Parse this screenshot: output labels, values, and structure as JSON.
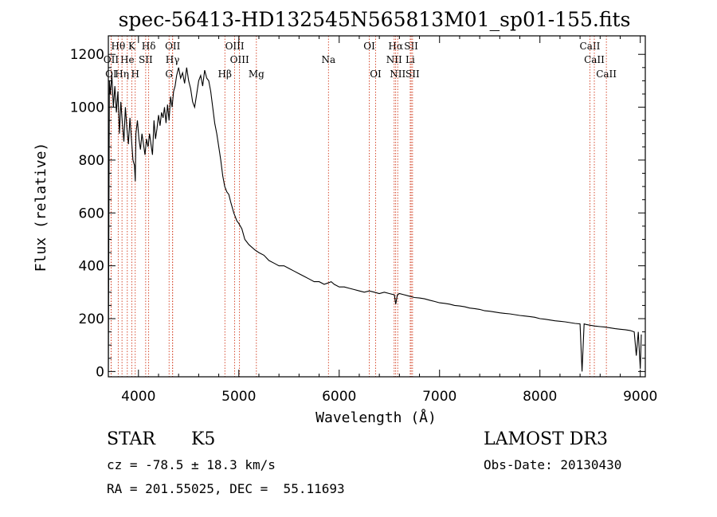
{
  "chart_data": {
    "type": "line",
    "title": "spec-56413-HD132545N565813M01_sp01-155.fits",
    "xlabel": "Wavelength (Å)",
    "ylabel": "Flux (relative)",
    "xlim": [
      3700,
      9050
    ],
    "ylim": [
      -20,
      1270
    ],
    "x_ticks": [
      4000,
      5000,
      6000,
      7000,
      8000,
      9000
    ],
    "y_ticks": [
      0,
      200,
      400,
      600,
      800,
      1000,
      1200
    ],
    "series": [
      {
        "name": "flux",
        "x": [
          3700,
          3710,
          3720,
          3735,
          3750,
          3765,
          3780,
          3795,
          3810,
          3825,
          3840,
          3855,
          3870,
          3885,
          3900,
          3915,
          3930,
          3945,
          3960,
          3968,
          3975,
          3990,
          4005,
          4020,
          4035,
          4050,
          4065,
          4080,
          4095,
          4110,
          4125,
          4140,
          4155,
          4170,
          4185,
          4200,
          4215,
          4230,
          4245,
          4260,
          4275,
          4290,
          4305,
          4320,
          4335,
          4350,
          4365,
          4380,
          4400,
          4420,
          4440,
          4460,
          4480,
          4500,
          4520,
          4540,
          4560,
          4580,
          4600,
          4620,
          4640,
          4660,
          4680,
          4700,
          4720,
          4740,
          4760,
          4780,
          4800,
          4820,
          4840,
          4860,
          4880,
          4900,
          4920,
          4950,
          4980,
          5000,
          5030,
          5060,
          5100,
          5130,
          5160,
          5200,
          5250,
          5300,
          5350,
          5400,
          5450,
          5500,
          5550,
          5600,
          5650,
          5700,
          5750,
          5800,
          5850,
          5890,
          5920,
          5950,
          6000,
          6050,
          6100,
          6150,
          6200,
          6250,
          6300,
          6350,
          6400,
          6450,
          6500,
          6550,
          6563,
          6580,
          6600,
          6650,
          6700,
          6750,
          6800,
          6850,
          6900,
          6950,
          7000,
          7050,
          7100,
          7150,
          7200,
          7250,
          7300,
          7350,
          7400,
          7450,
          7500,
          7550,
          7600,
          7650,
          7700,
          7750,
          7800,
          7850,
          7900,
          7950,
          8000,
          8050,
          8100,
          8150,
          8200,
          8250,
          8300,
          8350,
          8400,
          8420,
          8440,
          8460,
          8500,
          8550,
          8600,
          8650,
          8700,
          8750,
          8800,
          8850,
          8900,
          8940,
          8960,
          8980,
          9000,
          9010
        ],
        "values": [
          0,
          1100,
          1050,
          1120,
          1000,
          1080,
          980,
          1060,
          900,
          1020,
          940,
          870,
          1000,
          920,
          860,
          960,
          880,
          800,
          780,
          720,
          900,
          950,
          880,
          840,
          900,
          860,
          820,
          880,
          850,
          900,
          860,
          820,
          950,
          880,
          920,
          970,
          930,
          980,
          960,
          1000,
          940,
          1010,
          950,
          1040,
          1000,
          1060,
          1080,
          1120,
          1150,
          1110,
          1130,
          1090,
          1150,
          1100,
          1070,
          1020,
          1000,
          1050,
          1100,
          1120,
          1080,
          1140,
          1110,
          1100,
          1060,
          1000,
          940,
          900,
          850,
          800,
          740,
          700,
          680,
          670,
          640,
          600,
          570,
          560,
          540,
          500,
          480,
          470,
          460,
          450,
          440,
          420,
          410,
          400,
          400,
          390,
          380,
          370,
          360,
          350,
          340,
          340,
          330,
          335,
          340,
          330,
          320,
          320,
          315,
          310,
          305,
          300,
          305,
          300,
          295,
          300,
          295,
          290,
          255,
          290,
          295,
          290,
          285,
          280,
          278,
          275,
          270,
          265,
          260,
          258,
          255,
          250,
          248,
          245,
          240,
          238,
          235,
          230,
          228,
          225,
          222,
          220,
          218,
          215,
          212,
          210,
          208,
          205,
          200,
          198,
          195,
          192,
          190,
          188,
          185,
          182,
          180,
          0,
          180,
          178,
          175,
          172,
          170,
          168,
          165,
          162,
          160,
          158,
          155,
          150,
          60,
          150,
          10,
          140
        ]
      }
    ],
    "spectral_lines": [
      {
        "label": "Hθ",
        "x": 3798,
        "row": 1
      },
      {
        "label": "K",
        "x": 3934,
        "row": 1
      },
      {
        "label": "Hδ",
        "x": 4102,
        "row": 1
      },
      {
        "label": "OII",
        "x": 4341,
        "row": 1
      },
      {
        "label": "OIII",
        "x": 4959,
        "row": 1
      },
      {
        "label": "OI",
        "x": 6300,
        "row": 1
      },
      {
        "label": "Hα",
        "x": 6563,
        "row": 1
      },
      {
        "label": "SII",
        "x": 6717,
        "row": 1
      },
      {
        "label": "CaII",
        "x": 8498,
        "row": 1
      },
      {
        "label": "OII",
        "x": 3727,
        "row": 2
      },
      {
        "label": "He",
        "x": 3889,
        "row": 2
      },
      {
        "label": "SII",
        "x": 4072,
        "row": 2
      },
      {
        "label": "Hγ",
        "x": 4340,
        "row": 2
      },
      {
        "label": "OIII",
        "x": 5007,
        "row": 2
      },
      {
        "label": "Na",
        "x": 5893,
        "row": 2
      },
      {
        "label": "NII",
        "x": 6548,
        "row": 2
      },
      {
        "label": "Li",
        "x": 6708,
        "row": 2
      },
      {
        "label": "CaII",
        "x": 8542,
        "row": 2
      },
      {
        "label": "OI",
        "x": 3727,
        "row": 3
      },
      {
        "label": "Hη",
        "x": 3836,
        "row": 3
      },
      {
        "label": "H",
        "x": 3968,
        "row": 3
      },
      {
        "label": "G",
        "x": 4305,
        "row": 3
      },
      {
        "label": "Hβ",
        "x": 4861,
        "row": 3
      },
      {
        "label": "Mg",
        "x": 5175,
        "row": 3
      },
      {
        "label": "OI",
        "x": 6363,
        "row": 3
      },
      {
        "label": "NII",
        "x": 6583,
        "row": 3
      },
      {
        "label": "SII",
        "x": 6731,
        "row": 3
      },
      {
        "label": "CaII",
        "x": 8662,
        "row": 3
      }
    ],
    "line_color": "#cc2200",
    "grid": false
  },
  "info": {
    "object_class": "STAR",
    "subclass": "K5",
    "survey": "LAMOST DR3",
    "cz": "cz = -78.5 ± 18.3 km/s",
    "obs_date": "Obs-Date: 20130430",
    "coords": "RA = 201.55025, DEC =  55.11693"
  }
}
